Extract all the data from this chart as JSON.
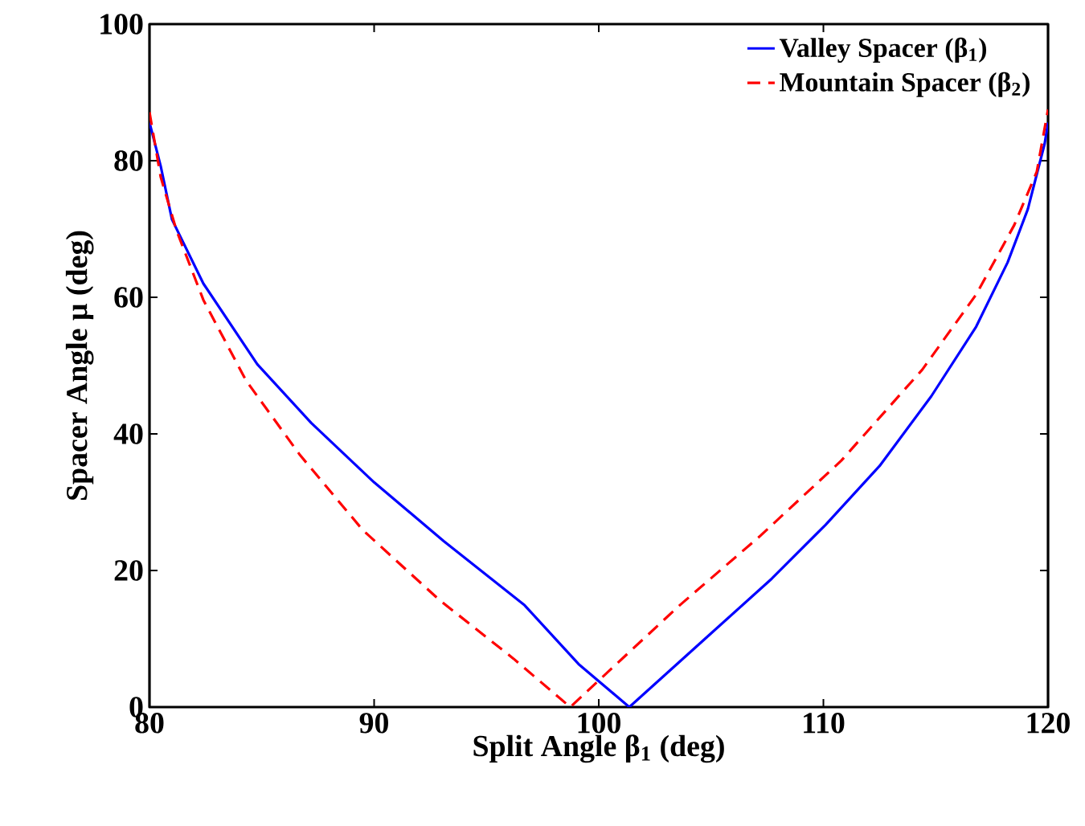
{
  "chart_data": {
    "type": "line",
    "xlabel": "Split Angle β$_{1}$ (deg)",
    "ylabel": "Spacer Angle μ (deg)",
    "xlim": [
      80,
      120
    ],
    "ylim": [
      0,
      100
    ],
    "xticks": [
      80,
      90,
      100,
      110,
      120
    ],
    "yticks": [
      0,
      20,
      40,
      60,
      80,
      100
    ],
    "grid": false,
    "legend": "top right",
    "marker": "none",
    "series": [
      {
        "name": "Valley Spacer (β$_{1}$)",
        "color": "#0000ff",
        "line_style": "solid",
        "x": [
          80,
          80.5,
          81.0,
          82.4,
          84.8,
          87.2,
          90.0,
          93.1,
          96.7,
          99.1,
          101.36,
          104.8,
          107.7,
          110.1,
          112.5,
          114.8,
          116.8,
          118.2,
          119.1,
          119.85,
          120
        ],
        "values": [
          85.6,
          79.2,
          71.4,
          62.0,
          50.2,
          41.6,
          32.9,
          24.3,
          14.9,
          6.3,
          0,
          10.2,
          18.8,
          26.7,
          35.3,
          45.5,
          55.7,
          65.1,
          72.9,
          82.5,
          85.6
        ]
      },
      {
        "name": "Mountain Spacer (β$_{2}$)",
        "color": "#ff0000",
        "line_style": "dashed",
        "x": [
          80,
          80.5,
          81.2,
          82.4,
          84.3,
          86.7,
          89.5,
          92.9,
          96.2,
          98.73,
          100.0,
          103.6,
          107.2,
          110.8,
          114.4,
          116.8,
          118.5,
          119.5,
          120
        ],
        "values": [
          87.1,
          77.6,
          69.8,
          59.6,
          47.8,
          36.9,
          25.9,
          15.7,
          7.1,
          0,
          3.9,
          14.9,
          25.1,
          36.1,
          49.4,
          60.4,
          70.6,
          78.4,
          87.5
        ]
      }
    ]
  }
}
